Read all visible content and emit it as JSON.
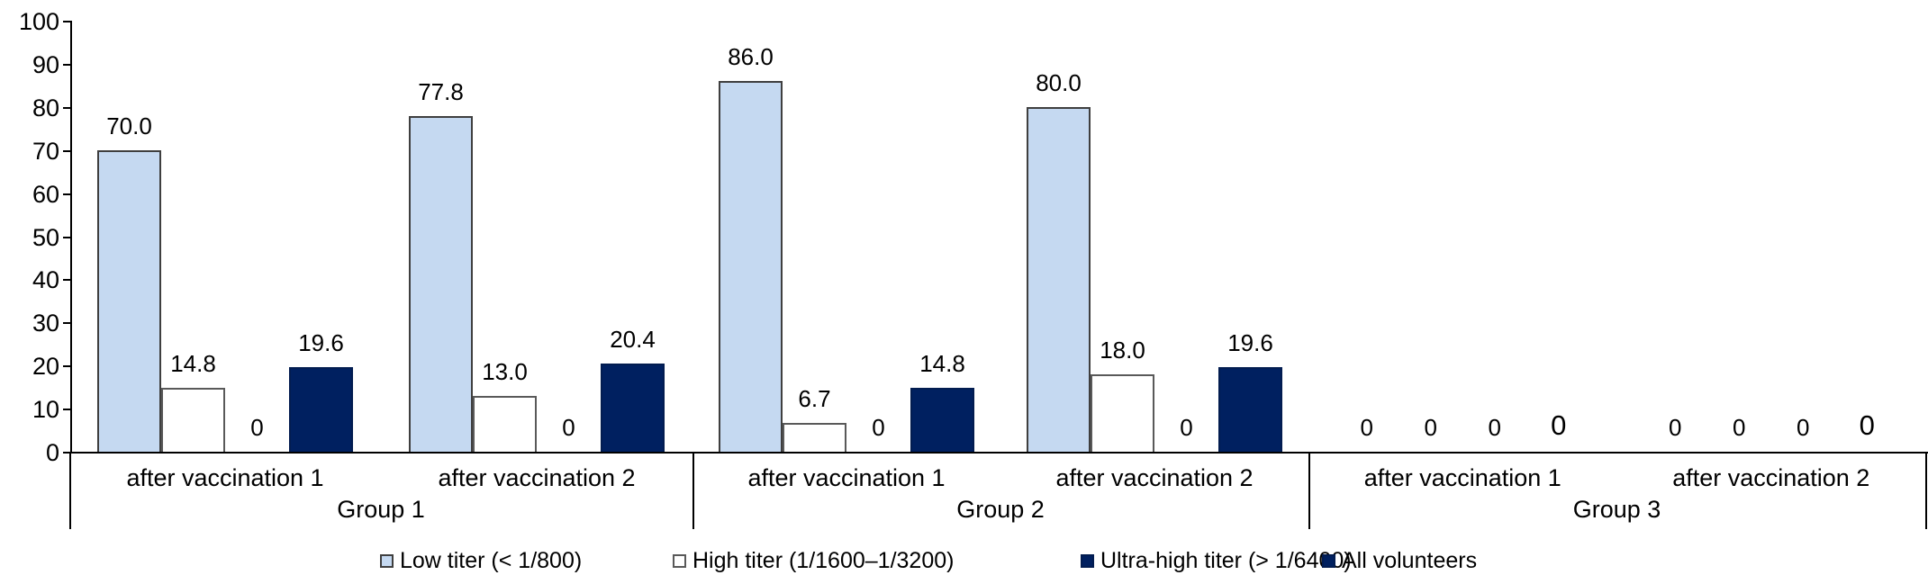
{
  "chart_data": {
    "type": "bar",
    "title": "",
    "xlabel": "",
    "ylabel": "",
    "ylim": [
      0,
      100
    ],
    "grid": false,
    "legend_position": "bottom",
    "ytick_labels": [
      "0",
      "10",
      "20",
      "30",
      "40",
      "50",
      "60",
      "70",
      "80",
      "90",
      "100"
    ],
    "ytick_values": [
      0,
      10,
      20,
      30,
      40,
      50,
      60,
      70,
      80,
      90,
      100
    ],
    "series": [
      {
        "name": "Low titer (< 1/800)",
        "color": "#C5D9F1",
        "border": "#3f3f3f"
      },
      {
        "name": "High titer (1/1600–1/3200)",
        "color": "#FFFFFF",
        "border": "#595959"
      },
      {
        "name": "Ultra-high titer (> 1/6400)",
        "color": "#002060",
        "border": "#021c50"
      },
      {
        "name": "All volunteers",
        "color": "#002060",
        "border": "#021c50"
      }
    ],
    "groups": [
      {
        "label": "Group 1",
        "subcategories": [
          {
            "label": "after vaccination 1",
            "values": [
              70.0,
              14.8,
              0,
              19.6
            ],
            "value_labels": [
              "70.0",
              "14.8",
              "0",
              "19.6"
            ]
          },
          {
            "label": "after vaccination 2",
            "values": [
              77.8,
              13.0,
              0,
              20.4
            ],
            "value_labels": [
              "77.8",
              "13.0",
              "0",
              "20.4"
            ]
          }
        ]
      },
      {
        "label": "Group 2",
        "subcategories": [
          {
            "label": "after vaccination 1",
            "values": [
              86.0,
              6.7,
              0,
              14.8
            ],
            "value_labels": [
              "86.0",
              "6.7",
              "0",
              "14.8"
            ]
          },
          {
            "label": "after vaccination 2",
            "values": [
              80.0,
              18.0,
              0,
              19.6
            ],
            "value_labels": [
              "80.0",
              "18.0",
              "0",
              "19.6"
            ]
          }
        ]
      },
      {
        "label": "Group 3",
        "subcategories": [
          {
            "label": "after vaccination 1",
            "values": [
              0,
              0,
              0,
              0
            ],
            "value_labels": [
              "0",
              "0",
              "0",
              "0"
            ]
          },
          {
            "label": "after vaccination 2",
            "values": [
              0,
              0,
              0,
              0
            ],
            "value_labels": [
              "0",
              "0",
              "0",
              "0"
            ]
          }
        ]
      }
    ]
  }
}
